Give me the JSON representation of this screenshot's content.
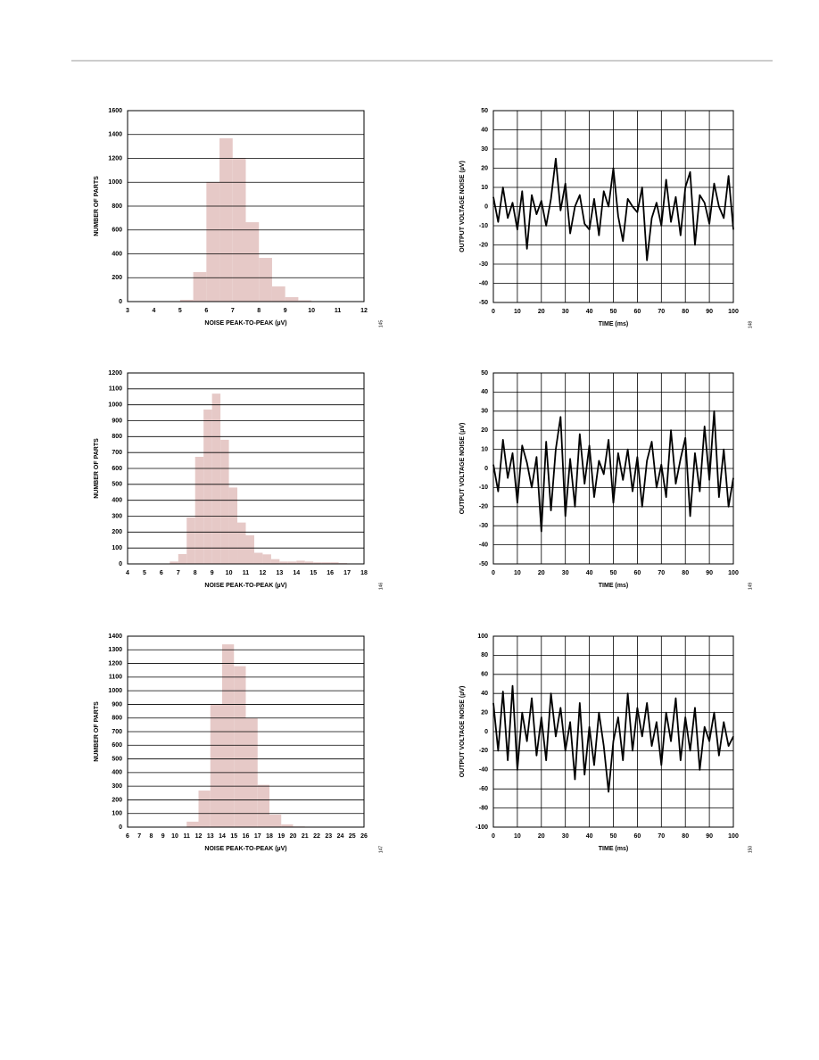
{
  "chart_data": [
    {
      "type": "histogram",
      "xlabel": "NOISE PEAK-TO-PEAK (µV)",
      "ylabel": "NUMBER OF PARTS",
      "figure_code": "145",
      "bins": [
        5,
        5.5,
        6,
        6.5,
        7,
        7.5,
        8,
        8.5,
        9,
        9.5,
        10
      ],
      "values": [
        15,
        247,
        1002,
        1368,
        1204,
        665,
        366,
        127,
        37,
        10
      ],
      "color": "#e6c9c7",
      "xlim": [
        3,
        12
      ],
      "xticks": [
        3,
        4,
        5,
        6,
        7,
        8,
        9,
        10,
        11,
        12
      ],
      "ylim": [
        0,
        1600
      ],
      "yticks": [
        0,
        200,
        400,
        600,
        800,
        1000,
        1200,
        1400,
        1600
      ],
      "grid": "y"
    },
    {
      "type": "line",
      "xlabel": "TIME (ms)",
      "ylabel": "OUTPUT VOLTAGE NOISE (µV)",
      "figure_code": "148",
      "x": [
        0,
        2,
        4,
        6,
        8,
        10,
        12,
        14,
        16,
        18,
        20,
        22,
        24,
        26,
        28,
        30,
        32,
        34,
        36,
        38,
        40,
        42,
        44,
        46,
        48,
        50,
        52,
        54,
        56,
        58,
        60,
        62,
        64,
        66,
        68,
        70,
        72,
        74,
        76,
        78,
        80,
        82,
        84,
        86,
        88,
        90,
        92,
        94,
        96,
        98,
        100
      ],
      "series": [
        {
          "color": "#000000",
          "values": [
            5,
            -8,
            10,
            -6,
            2,
            -12,
            8,
            -22,
            6,
            -4,
            3,
            -10,
            4,
            25,
            -2,
            12,
            -14,
            0,
            6,
            -9,
            -12,
            4,
            -15,
            8,
            0,
            20,
            -5,
            -18,
            4,
            0,
            -3,
            10,
            -28,
            -6,
            2,
            -10,
            14,
            -8,
            5,
            -15,
            10,
            18,
            -20,
            6,
            2,
            -9,
            12,
            0,
            -6,
            16,
            -12
          ]
        }
      ],
      "xlim": [
        0,
        100
      ],
      "xticks": [
        0,
        10,
        20,
        30,
        40,
        50,
        60,
        70,
        80,
        90,
        100
      ],
      "ylim": [
        -50,
        50
      ],
      "yticks": [
        -50,
        -40,
        -30,
        -20,
        -10,
        0,
        10,
        20,
        30,
        40,
        50
      ],
      "grid": "both"
    },
    {
      "type": "histogram",
      "xlabel": "NOISE PEAK-TO-PEAK (µV)",
      "ylabel": "NUMBER OF PARTS",
      "figure_code": "146",
      "bins": [
        6.5,
        7,
        7.5,
        8,
        8.5,
        9,
        9.5,
        10,
        10.5,
        11,
        11.5,
        12,
        12.5,
        13,
        13.5,
        14,
        14.5,
        15,
        15.5,
        16,
        16.5,
        17
      ],
      "values": [
        15,
        62,
        292,
        673,
        970,
        1070,
        780,
        480,
        260,
        180,
        70,
        60,
        30,
        15,
        15,
        20,
        15,
        10,
        10,
        10,
        5
      ],
      "color": "#e6c9c7",
      "xlim": [
        4,
        18
      ],
      "xticks": [
        4,
        5,
        6,
        7,
        8,
        9,
        10,
        11,
        12,
        13,
        14,
        15,
        16,
        17,
        18
      ],
      "ylim": [
        0,
        1200
      ],
      "yticks": [
        0,
        100,
        200,
        300,
        400,
        500,
        600,
        700,
        800,
        900,
        1000,
        1100,
        1200
      ],
      "grid": "y"
    },
    {
      "type": "line",
      "xlabel": "TIME (ms)",
      "ylabel": "OUTPUT VOLTAGE NOISE (µV)",
      "figure_code": "149",
      "x": [
        0,
        2,
        4,
        6,
        8,
        10,
        12,
        14,
        16,
        18,
        20,
        22,
        24,
        26,
        28,
        30,
        32,
        34,
        36,
        38,
        40,
        42,
        44,
        46,
        48,
        50,
        52,
        54,
        56,
        58,
        60,
        62,
        64,
        66,
        68,
        70,
        72,
        74,
        76,
        78,
        80,
        82,
        84,
        86,
        88,
        90,
        92,
        94,
        96,
        98,
        100
      ],
      "series": [
        {
          "color": "#000000",
          "values": [
            2,
            -12,
            15,
            -5,
            8,
            -18,
            12,
            3,
            -10,
            6,
            -33,
            14,
            -22,
            10,
            27,
            -25,
            5,
            -20,
            18,
            -8,
            12,
            -15,
            4,
            -3,
            15,
            -18,
            8,
            -6,
            10,
            -12,
            6,
            -20,
            4,
            14,
            -10,
            2,
            -15,
            20,
            -8,
            5,
            16,
            -25,
            8,
            -12,
            22,
            -6,
            30,
            -15,
            10,
            -20,
            -5
          ]
        }
      ],
      "xlim": [
        0,
        100
      ],
      "xticks": [
        0,
        10,
        20,
        30,
        40,
        50,
        60,
        70,
        80,
        90,
        100
      ],
      "ylim": [
        -50,
        50
      ],
      "yticks": [
        -50,
        -40,
        -30,
        -20,
        -10,
        0,
        10,
        20,
        30,
        40,
        50
      ],
      "grid": "both"
    },
    {
      "type": "histogram",
      "xlabel": "NOISE PEAK-TO-PEAK (µV)",
      "ylabel": "NUMBER OF PARTS",
      "figure_code": "147",
      "bins": [
        11,
        12,
        13,
        14,
        15,
        16,
        17,
        18,
        19,
        20,
        21
      ],
      "values": [
        40,
        268,
        900,
        1340,
        1180,
        800,
        310,
        92,
        20,
        5
      ],
      "color": "#e6c9c7",
      "xlim": [
        6,
        26
      ],
      "xticks": [
        6,
        7,
        8,
        9,
        10,
        11,
        12,
        13,
        14,
        15,
        16,
        17,
        18,
        19,
        20,
        21,
        22,
        23,
        24,
        25,
        26
      ],
      "ylim": [
        0,
        1400
      ],
      "yticks": [
        0,
        100,
        200,
        300,
        400,
        500,
        600,
        700,
        800,
        900,
        1000,
        1100,
        1200,
        1300,
        1400
      ],
      "grid": "y"
    },
    {
      "type": "line",
      "xlabel": "TIME (ms)",
      "ylabel": "OUTPUT VOLTAGE NOISE (µV)",
      "figure_code": "150",
      "x": [
        0,
        2,
        4,
        6,
        8,
        10,
        12,
        14,
        16,
        18,
        20,
        22,
        24,
        26,
        28,
        30,
        32,
        34,
        36,
        38,
        40,
        42,
        44,
        46,
        48,
        50,
        52,
        54,
        56,
        58,
        60,
        62,
        64,
        66,
        68,
        70,
        72,
        74,
        76,
        78,
        80,
        82,
        84,
        86,
        88,
        90,
        92,
        94,
        96,
        98,
        100
      ],
      "series": [
        {
          "color": "#000000",
          "values": [
            30,
            -20,
            42,
            -30,
            48,
            -40,
            20,
            -10,
            35,
            -25,
            15,
            -30,
            40,
            -5,
            25,
            -20,
            10,
            -50,
            30,
            -45,
            5,
            -35,
            20,
            -15,
            -63,
            -10,
            15,
            -30,
            40,
            -20,
            25,
            -5,
            30,
            -15,
            10,
            -35,
            20,
            -10,
            35,
            -30,
            15,
            -20,
            25,
            -40,
            5,
            -10,
            20,
            -25,
            10,
            -15,
            -5
          ]
        }
      ],
      "xlim": [
        0,
        100
      ],
      "xticks": [
        0,
        10,
        20,
        30,
        40,
        50,
        60,
        70,
        80,
        90,
        100
      ],
      "ylim": [
        -100,
        100
      ],
      "yticks": [
        -100,
        -80,
        -60,
        -40,
        -20,
        0,
        20,
        40,
        60,
        80,
        100
      ],
      "grid": "both"
    }
  ]
}
